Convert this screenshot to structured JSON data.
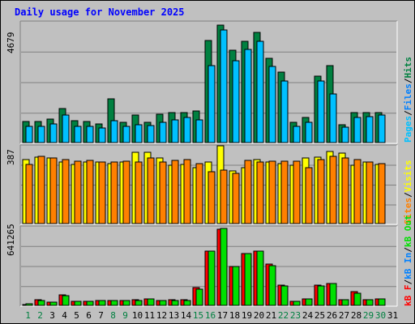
{
  "title": "Daily usage for November 2025",
  "colors": {
    "pages": "#00c0ff",
    "files": "#0080ff",
    "hits": "#008040",
    "visits": "#ffff00",
    "sites": "#ff8000",
    "kb_out": "#00e000",
    "kb_in": "#0080ff",
    "kb_f": "#ff0000",
    "weekend_day": "#008040",
    "weekday": "#000000"
  },
  "right_legends": {
    "top": [
      {
        "text": "Pages",
        "color": "#00c0ff"
      },
      {
        "text": "/",
        "color": "#000000"
      },
      {
        "text": "Files",
        "color": "#0080ff"
      },
      {
        "text": "/",
        "color": "#000000"
      },
      {
        "text": "Hits",
        "color": "#008040"
      }
    ],
    "mid": [
      {
        "text": "Sites",
        "color": "#ff8000"
      },
      {
        "text": "/",
        "color": "#000000"
      },
      {
        "text": "Visits",
        "color": "#ffff00"
      }
    ],
    "bottom": [
      {
        "text": "kB F",
        "color": "#ff0000"
      },
      {
        "text": "/",
        "color": "#000000"
      },
      {
        "text": "kB In",
        "color": "#0080ff"
      },
      {
        "text": "/",
        "color": "#000000"
      },
      {
        "text": "kB Out",
        "color": "#00e000"
      }
    ]
  },
  "chart_data": [
    {
      "type": "bar",
      "panel": "hits-pages",
      "max_label": "4679",
      "ylim": [
        0,
        4679
      ],
      "categories": [
        "1",
        "2",
        "3",
        "4",
        "5",
        "6",
        "7",
        "8",
        "9",
        "10",
        "11",
        "12",
        "13",
        "14",
        "15",
        "16",
        "17",
        "18",
        "19",
        "20",
        "21",
        "22",
        "23",
        "24",
        "25",
        "26",
        "27",
        "28",
        "29",
        "30",
        "31"
      ],
      "series": [
        {
          "name": "Hits",
          "values": [
            810,
            830,
            920,
            1320,
            840,
            810,
            730,
            1700,
            790,
            1060,
            800,
            1110,
            1170,
            1150,
            1240,
            3960,
            4560,
            3580,
            3930,
            4280,
            3280,
            2720,
            800,
            970,
            2590,
            2990,
            690,
            1170,
            1160,
            1150,
            0
          ]
        },
        {
          "name": "Pages",
          "values": [
            640,
            630,
            720,
            1080,
            620,
            620,
            580,
            850,
            620,
            680,
            660,
            800,
            870,
            960,
            880,
            2970,
            4360,
            3180,
            3600,
            3910,
            2950,
            2390,
            620,
            770,
            2400,
            1890,
            600,
            960,
            1020,
            1060,
            0
          ]
        }
      ]
    },
    {
      "type": "bar",
      "panel": "visits-sites",
      "max_label": "387",
      "ylim": [
        0,
        387
      ],
      "categories": [
        "1",
        "2",
        "3",
        "4",
        "5",
        "6",
        "7",
        "8",
        "9",
        "10",
        "11",
        "12",
        "13",
        "14",
        "15",
        "16",
        "17",
        "18",
        "19",
        "20",
        "21",
        "22",
        "23",
        "24",
        "25",
        "26",
        "27",
        "28",
        "29",
        "30",
        "31"
      ],
      "series": [
        {
          "name": "Visits",
          "values": [
            318,
            330,
            328,
            305,
            295,
            305,
            305,
            300,
            305,
            353,
            355,
            325,
            290,
            295,
            280,
            307,
            387,
            262,
            280,
            320,
            308,
            297,
            290,
            325,
            330,
            360,
            350,
            290,
            307,
            295,
            0
          ]
        },
        {
          "name": "Sites",
          "values": [
            295,
            335,
            325,
            317,
            310,
            315,
            305,
            305,
            310,
            305,
            325,
            305,
            315,
            320,
            300,
            260,
            265,
            250,
            315,
            305,
            310,
            310,
            310,
            280,
            320,
            335,
            325,
            317,
            305,
            297,
            0
          ]
        }
      ]
    },
    {
      "type": "bar",
      "panel": "kbytes",
      "max_label": "641265",
      "ylim": [
        0,
        641265
      ],
      "categories": [
        "1",
        "2",
        "3",
        "4",
        "5",
        "6",
        "7",
        "8",
        "9",
        "10",
        "11",
        "12",
        "13",
        "14",
        "15",
        "16",
        "17",
        "18",
        "19",
        "20",
        "21",
        "22",
        "23",
        "24",
        "25",
        "26",
        "27",
        "28",
        "29",
        "30",
        "31"
      ],
      "series": [
        {
          "name": "kB F",
          "values": [
            8000,
            43000,
            28000,
            87000,
            32000,
            32000,
            40000,
            40000,
            40000,
            45000,
            55000,
            40000,
            45000,
            45000,
            148000,
            445000,
            620000,
            315000,
            425000,
            445000,
            335000,
            165000,
            35000,
            55000,
            168000,
            177000,
            45000,
            110000,
            45000,
            55000,
            0
          ]
        },
        {
          "name": "kB Out",
          "values": [
            12000,
            38000,
            25000,
            80000,
            30000,
            30000,
            38000,
            38000,
            38000,
            40000,
            50000,
            38000,
            40000,
            42000,
            135000,
            440000,
            627000,
            315000,
            425000,
            440000,
            325000,
            160000,
            35000,
            50000,
            160000,
            177000,
            45000,
            100000,
            45000,
            55000,
            0
          ]
        }
      ]
    }
  ]
}
